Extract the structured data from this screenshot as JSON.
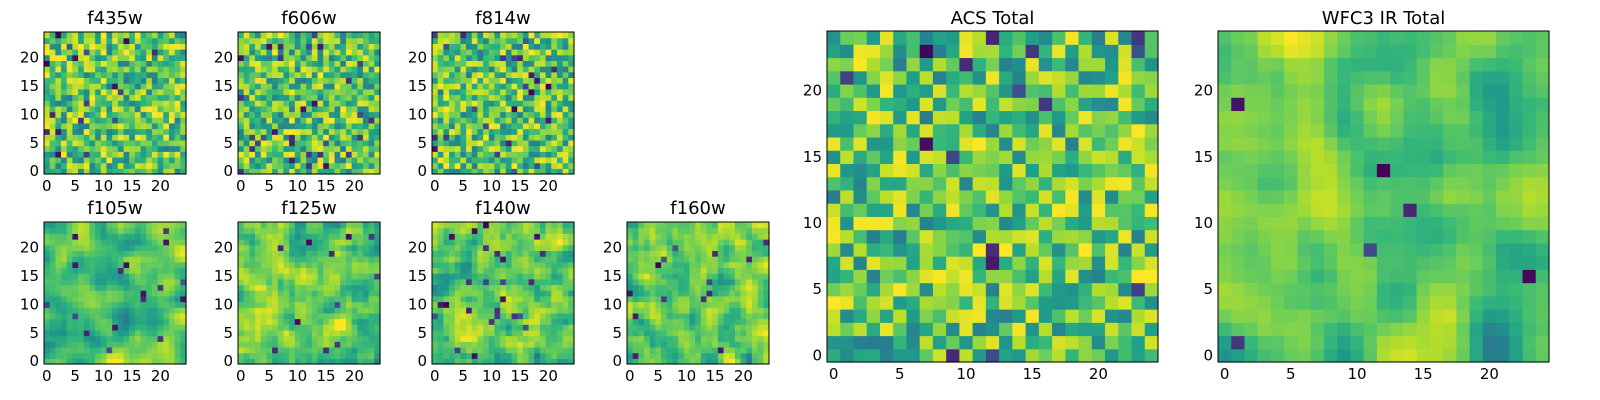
{
  "figure": {
    "title": ""
  },
  "chart_data": [
    {
      "type": "heatmap",
      "title": "f435w",
      "grid": [
        25,
        25
      ],
      "xticks": [
        "0",
        "5",
        "10",
        "15",
        "20"
      ],
      "yticks": [
        "0",
        "5",
        "10",
        "15",
        "20"
      ],
      "xlim": [
        0,
        24
      ],
      "ylim": [
        0,
        24
      ],
      "colormap": "viridis",
      "seed": 11,
      "smooth": 0,
      "low_frac": 0.04
    },
    {
      "type": "heatmap",
      "title": "f606w",
      "grid": [
        25,
        25
      ],
      "xticks": [
        "0",
        "5",
        "10",
        "15",
        "20"
      ],
      "yticks": [
        "0",
        "5",
        "10",
        "15",
        "20"
      ],
      "xlim": [
        0,
        24
      ],
      "ylim": [
        0,
        24
      ],
      "colormap": "viridis",
      "seed": 23,
      "smooth": 0,
      "low_frac": 0.04
    },
    {
      "type": "heatmap",
      "title": "f814w",
      "grid": [
        25,
        25
      ],
      "xticks": [
        "0",
        "5",
        "10",
        "15",
        "20"
      ],
      "yticks": [
        "0",
        "5",
        "10",
        "15",
        "20"
      ],
      "xlim": [
        0,
        24
      ],
      "ylim": [
        0,
        24
      ],
      "colormap": "viridis",
      "seed": 37,
      "smooth": 0,
      "low_frac": 0.04
    },
    {
      "type": "heatmap",
      "title": "f105w",
      "grid": [
        25,
        25
      ],
      "xticks": [
        "0",
        "5",
        "10",
        "15",
        "20"
      ],
      "yticks": [
        "0",
        "5",
        "10",
        "15",
        "20"
      ],
      "xlim": [
        0,
        24
      ],
      "ylim": [
        0,
        24
      ],
      "colormap": "viridis",
      "seed": 41,
      "smooth": 2,
      "low_frac": 0.02
    },
    {
      "type": "heatmap",
      "title": "f125w",
      "grid": [
        25,
        25
      ],
      "xticks": [
        "0",
        "5",
        "10",
        "15",
        "20"
      ],
      "yticks": [
        "0",
        "5",
        "10",
        "15",
        "20"
      ],
      "xlim": [
        0,
        24
      ],
      "ylim": [
        0,
        24
      ],
      "colormap": "viridis",
      "seed": 53,
      "smooth": 1,
      "low_frac": 0.02
    },
    {
      "type": "heatmap",
      "title": "f140w",
      "grid": [
        25,
        25
      ],
      "xticks": [
        "0",
        "5",
        "10",
        "15",
        "20"
      ],
      "yticks": [
        "0",
        "5",
        "10",
        "15",
        "20"
      ],
      "xlim": [
        0,
        24
      ],
      "ylim": [
        0,
        24
      ],
      "colormap": "viridis",
      "seed": 67,
      "smooth": 1,
      "low_frac": 0.03
    },
    {
      "type": "heatmap",
      "title": "f160w",
      "grid": [
        25,
        25
      ],
      "xticks": [
        "0",
        "5",
        "10",
        "15",
        "20"
      ],
      "yticks": [
        "0",
        "5",
        "10",
        "15",
        "20"
      ],
      "xlim": [
        0,
        24
      ],
      "ylim": [
        0,
        24
      ],
      "colormap": "viridis",
      "seed": 79,
      "smooth": 1,
      "low_frac": 0.03
    },
    {
      "type": "heatmap",
      "title": "ACS Total",
      "grid": [
        25,
        25
      ],
      "xticks": [
        "0",
        "5",
        "10",
        "15",
        "20"
      ],
      "yticks": [
        "0",
        "5",
        "10",
        "15",
        "20"
      ],
      "xlim": [
        0,
        24
      ],
      "ylim": [
        0,
        24
      ],
      "colormap": "viridis",
      "seed": 97,
      "smooth": 0,
      "low_frac": 0.03
    },
    {
      "type": "heatmap",
      "title": "WFC3 IR Total",
      "grid": [
        25,
        25
      ],
      "xticks": [
        "0",
        "5",
        "10",
        "15",
        "20"
      ],
      "yticks": [
        "0",
        "5",
        "10",
        "15",
        "20"
      ],
      "xlim": [
        0,
        24
      ],
      "ylim": [
        0,
        24
      ],
      "colormap": "viridis",
      "seed": 131,
      "smooth": 2,
      "low_frac": 0.02
    }
  ]
}
